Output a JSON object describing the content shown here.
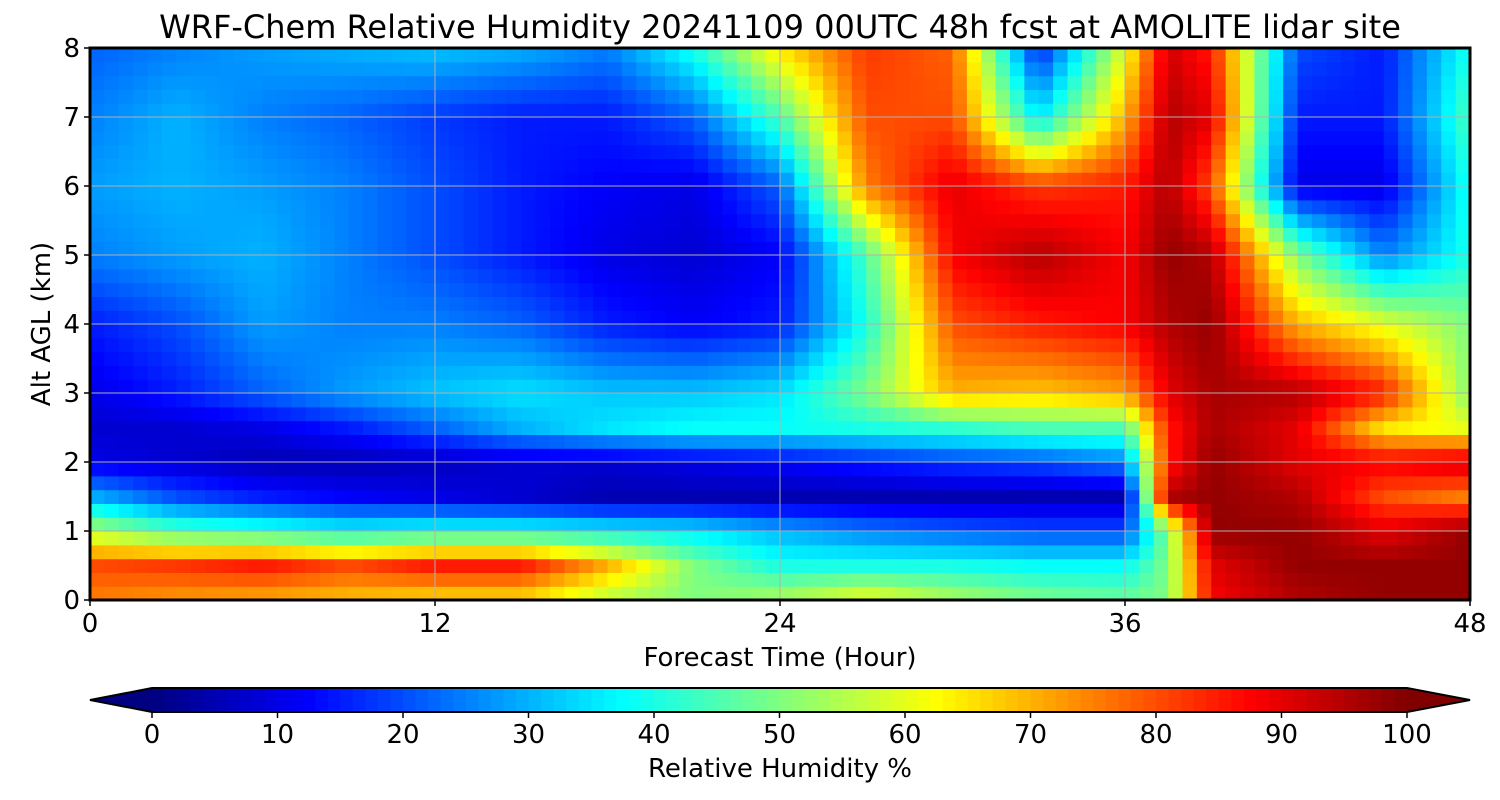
{
  "chart_data": {
    "type": "heatmap",
    "title": "WRF-Chem Relative Humidity 20241109 00UTC 48h fcst at AMOLITE lidar site",
    "xlabel": "Forecast Time (Hour)",
    "ylabel": "Alt AGL (km)",
    "xlim": [
      0,
      48
    ],
    "ylim": [
      0,
      8
    ],
    "x_ticks": [
      "0",
      "12",
      "24",
      "36",
      "48"
    ],
    "y_ticks": [
      "0",
      "1",
      "2",
      "3",
      "4",
      "5",
      "6",
      "7",
      "8"
    ],
    "grid": true,
    "colormap": "jet",
    "colorbar": {
      "label": "Relative Humidity %",
      "orientation": "horizontal",
      "extend": "both",
      "range": [
        0,
        100
      ],
      "ticks": [
        "0",
        "10",
        "20",
        "30",
        "40",
        "50",
        "60",
        "70",
        "80",
        "90",
        "100"
      ]
    },
    "x": [
      0,
      3,
      6,
      9,
      12,
      15,
      18,
      21,
      24,
      27,
      30,
      33,
      36,
      37.5,
      39,
      42,
      45,
      48
    ],
    "y": [
      0,
      0.5,
      1,
      1.5,
      2,
      2.5,
      3,
      4,
      5,
      6,
      7,
      8
    ],
    "z": [
      [
        75,
        72,
        70,
        68,
        65,
        65,
        55,
        50,
        55,
        62,
        55,
        50,
        48,
        50,
        88,
        95,
        98,
        98
      ],
      [
        80,
        82,
        85,
        80,
        85,
        85,
        70,
        50,
        40,
        40,
        40,
        38,
        38,
        50,
        90,
        98,
        98,
        98
      ],
      [
        55,
        45,
        42,
        38,
        40,
        40,
        38,
        36,
        30,
        25,
        22,
        20,
        20,
        50,
        98,
        98,
        90,
        98
      ],
      [
        30,
        20,
        15,
        12,
        10,
        8,
        5,
        5,
        5,
        5,
        5,
        5,
        5,
        95,
        98,
        95,
        80,
        75
      ],
      [
        10,
        8,
        5,
        5,
        6,
        8,
        8,
        10,
        12,
        15,
        18,
        20,
        25,
        85,
        98,
        90,
        88,
        92
      ],
      [
        8,
        8,
        10,
        15,
        22,
        30,
        35,
        38,
        38,
        40,
        42,
        45,
        45,
        85,
        96,
        90,
        65,
        60
      ],
      [
        10,
        15,
        22,
        28,
        32,
        35,
        32,
        32,
        35,
        50,
        70,
        68,
        72,
        90,
        96,
        95,
        85,
        50
      ],
      [
        15,
        20,
        28,
        25,
        25,
        22,
        15,
        12,
        15,
        40,
        80,
        85,
        88,
        95,
        98,
        70,
        60,
        50
      ],
      [
        25,
        28,
        30,
        25,
        20,
        15,
        10,
        8,
        12,
        45,
        88,
        95,
        88,
        98,
        95,
        50,
        25,
        40
      ],
      [
        28,
        30,
        28,
        25,
        20,
        15,
        12,
        10,
        22,
        75,
        90,
        82,
        85,
        95,
        80,
        10,
        10,
        40
      ],
      [
        25,
        30,
        25,
        22,
        18,
        15,
        15,
        22,
        45,
        80,
        80,
        35,
        70,
        95,
        90,
        15,
        15,
        45
      ],
      [
        22,
        25,
        28,
        30,
        32,
        30,
        25,
        40,
        65,
        82,
        78,
        15,
        60,
        92,
        85,
        20,
        15,
        40
      ]
    ]
  }
}
